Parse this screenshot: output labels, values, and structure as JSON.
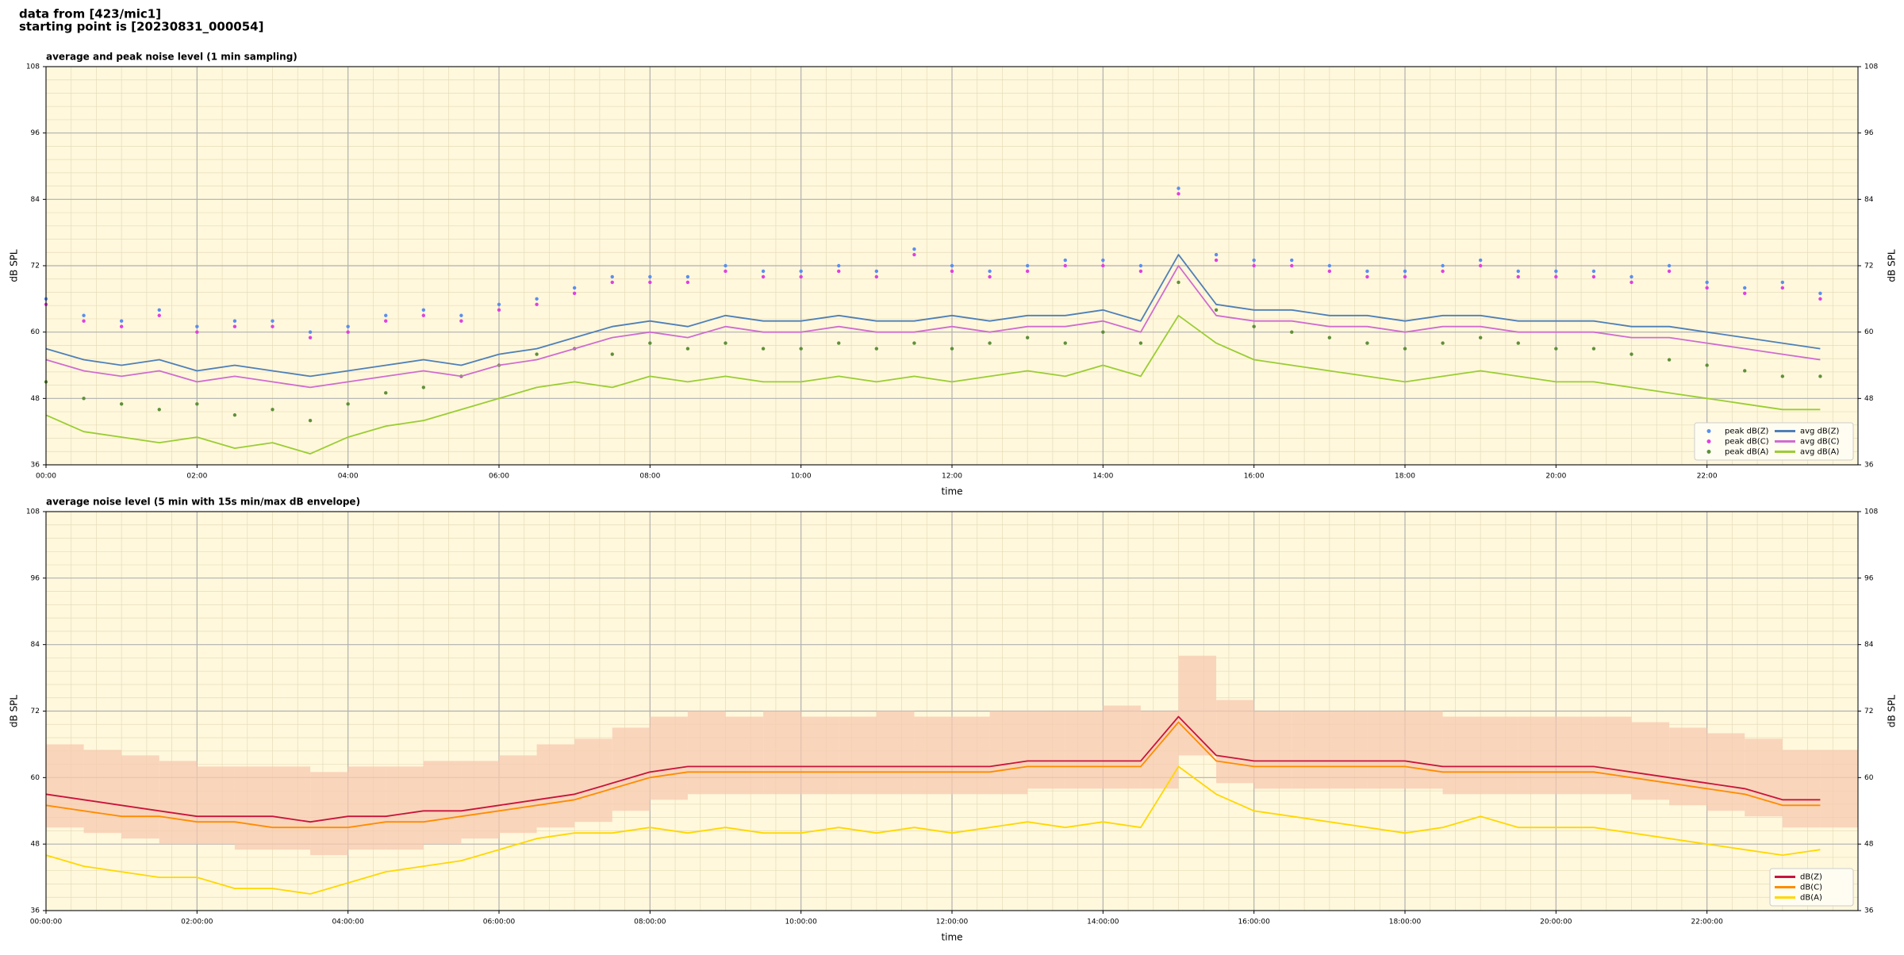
{
  "header": {
    "line1": "data from [423/mic1]",
    "line2": "starting point is [20230831_000054]"
  },
  "chart_data": [
    {
      "type": "line",
      "title": "average and peak noise level (1 min sampling)",
      "xlabel": "time",
      "ylabel": "dB SPL",
      "background": "#fff8dc",
      "grid": true,
      "minor_grid": true,
      "legend": {
        "loc": "lower right",
        "ncol": 2
      },
      "xlim": [
        0,
        24
      ],
      "ylim": [
        36,
        108
      ],
      "yticks": [
        36,
        48,
        60,
        72,
        84,
        96,
        108
      ],
      "xticks": [
        {
          "value": 0,
          "label": "00:00"
        },
        {
          "value": 2,
          "label": "02:00"
        },
        {
          "value": 4,
          "label": "04:00"
        },
        {
          "value": 6,
          "label": "06:00"
        },
        {
          "value": 8,
          "label": "08:00"
        },
        {
          "value": 10,
          "label": "10:00"
        },
        {
          "value": 12,
          "label": "12:00"
        },
        {
          "value": 14,
          "label": "14:00"
        },
        {
          "value": 16,
          "label": "16:00"
        },
        {
          "value": 18,
          "label": "18:00"
        },
        {
          "value": 20,
          "label": "20:00"
        },
        {
          "value": 22,
          "label": "22:00"
        }
      ],
      "x": [
        0,
        0.5,
        1,
        1.5,
        2,
        2.5,
        3,
        3.5,
        4,
        4.5,
        5,
        5.5,
        6,
        6.5,
        7,
        7.5,
        8,
        8.5,
        9,
        9.5,
        10,
        10.5,
        11,
        11.5,
        12,
        12.5,
        13,
        13.5,
        14,
        14.5,
        15,
        15.5,
        16,
        16.5,
        17,
        17.5,
        18,
        18.5,
        19,
        19.5,
        20,
        20.5,
        21,
        21.5,
        22,
        22.5,
        23,
        23.5
      ],
      "series": [
        {
          "name": "peak dB(Z)",
          "kind": "scatter",
          "color": "#5a8ef0",
          "values": [
            66,
            63,
            62,
            64,
            61,
            62,
            62,
            60,
            61,
            63,
            64,
            63,
            65,
            66,
            68,
            70,
            70,
            70,
            72,
            71,
            71,
            72,
            71,
            75,
            72,
            71,
            72,
            73,
            73,
            72,
            86,
            74,
            73,
            73,
            72,
            71,
            71,
            72,
            73,
            71,
            71,
            71,
            70,
            72,
            69,
            68,
            69,
            67
          ]
        },
        {
          "name": "peak dB(C)",
          "kind": "scatter",
          "color": "#e040e0",
          "values": [
            65,
            62,
            61,
            63,
            60,
            61,
            61,
            59,
            60,
            62,
            63,
            62,
            64,
            65,
            67,
            69,
            69,
            69,
            71,
            70,
            70,
            71,
            70,
            74,
            71,
            70,
            71,
            72,
            72,
            71,
            85,
            73,
            72,
            72,
            71,
            70,
            70,
            71,
            72,
            70,
            70,
            70,
            69,
            71,
            68,
            67,
            68,
            66
          ]
        },
        {
          "name": "peak dB(A)",
          "kind": "scatter",
          "color": "#5f8f3a",
          "values": [
            51,
            48,
            47,
            46,
            47,
            45,
            46,
            44,
            47,
            49,
            50,
            52,
            54,
            56,
            57,
            56,
            58,
            57,
            58,
            57,
            57,
            58,
            57,
            58,
            57,
            58,
            59,
            58,
            60,
            58,
            69,
            64,
            61,
            60,
            59,
            58,
            57,
            58,
            59,
            58,
            57,
            57,
            56,
            55,
            54,
            53,
            52,
            52
          ]
        },
        {
          "name": "avg dB(Z)",
          "kind": "line",
          "color": "#4f7fb8",
          "values": [
            57,
            55,
            54,
            55,
            53,
            54,
            53,
            52,
            53,
            54,
            55,
            54,
            56,
            57,
            59,
            61,
            62,
            61,
            63,
            62,
            62,
            63,
            62,
            62,
            63,
            62,
            63,
            63,
            64,
            62,
            74,
            65,
            64,
            64,
            63,
            63,
            62,
            63,
            63,
            62,
            62,
            62,
            61,
            61,
            60,
            59,
            58,
            57
          ]
        },
        {
          "name": "avg dB(C)",
          "kind": "line",
          "color": "#d06cd0",
          "values": [
            55,
            53,
            52,
            53,
            51,
            52,
            51,
            50,
            51,
            52,
            53,
            52,
            54,
            55,
            57,
            59,
            60,
            59,
            61,
            60,
            60,
            61,
            60,
            60,
            61,
            60,
            61,
            61,
            62,
            60,
            72,
            63,
            62,
            62,
            61,
            61,
            60,
            61,
            61,
            60,
            60,
            60,
            59,
            59,
            58,
            57,
            56,
            55
          ]
        },
        {
          "name": "avg dB(A)",
          "kind": "line",
          "color": "#9acd32",
          "values": [
            45,
            42,
            41,
            40,
            41,
            39,
            40,
            38,
            41,
            43,
            44,
            46,
            48,
            50,
            51,
            50,
            52,
            51,
            52,
            51,
            51,
            52,
            51,
            52,
            51,
            52,
            53,
            52,
            54,
            52,
            63,
            58,
            55,
            54,
            53,
            52,
            51,
            52,
            53,
            52,
            51,
            51,
            50,
            49,
            48,
            47,
            46,
            46
          ]
        }
      ]
    },
    {
      "type": "line",
      "title": "average noise level (5 min with 15s min/max dB envelope)",
      "xlabel": "time",
      "ylabel": "dB SPL",
      "background": "#fff8dc",
      "grid": true,
      "minor_grid": true,
      "legend": {
        "loc": "lower right",
        "ncol": 1
      },
      "xlim": [
        0,
        24
      ],
      "ylim": [
        36,
        108
      ],
      "yticks": [
        36,
        48,
        60,
        72,
        84,
        96,
        108
      ],
      "xticks": [
        {
          "value": 0,
          "label": "00:00:00"
        },
        {
          "value": 2,
          "label": "02:00:00"
        },
        {
          "value": 4,
          "label": "04:00:00"
        },
        {
          "value": 6,
          "label": "06:00:00"
        },
        {
          "value": 8,
          "label": "08:00:00"
        },
        {
          "value": 10,
          "label": "10:00:00"
        },
        {
          "value": 12,
          "label": "12:00:00"
        },
        {
          "value": 14,
          "label": "14:00:00"
        },
        {
          "value": 16,
          "label": "16:00:00"
        },
        {
          "value": 18,
          "label": "18:00:00"
        },
        {
          "value": 20,
          "label": "20:00:00"
        },
        {
          "value": 22,
          "label": "22:00:00"
        }
      ],
      "x": [
        0,
        0.5,
        1,
        1.5,
        2,
        2.5,
        3,
        3.5,
        4,
        4.5,
        5,
        5.5,
        6,
        6.5,
        7,
        7.5,
        8,
        8.5,
        9,
        9.5,
        10,
        10.5,
        11,
        11.5,
        12,
        12.5,
        13,
        13.5,
        14,
        14.5,
        15,
        15.5,
        16,
        16.5,
        17,
        17.5,
        18,
        18.5,
        19,
        19.5,
        20,
        20.5,
        21,
        21.5,
        22,
        22.5,
        23,
        23.5
      ],
      "envelope": {
        "color": "#f7c9b0",
        "max": [
          66,
          65,
          64,
          63,
          62,
          62,
          62,
          61,
          62,
          62,
          63,
          63,
          64,
          66,
          67,
          69,
          71,
          72,
          71,
          72,
          71,
          71,
          72,
          71,
          71,
          72,
          72,
          72,
          73,
          72,
          82,
          74,
          72,
          72,
          72,
          72,
          72,
          71,
          71,
          71,
          71,
          71,
          70,
          69,
          68,
          67,
          65,
          65
        ],
        "min": [
          51,
          50,
          49,
          48,
          48,
          47,
          47,
          46,
          47,
          47,
          48,
          49,
          50,
          51,
          52,
          54,
          56,
          57,
          57,
          57,
          57,
          57,
          57,
          57,
          57,
          57,
          58,
          58,
          58,
          58,
          64,
          59,
          58,
          58,
          58,
          58,
          58,
          57,
          57,
          57,
          57,
          57,
          56,
          55,
          54,
          53,
          51,
          51
        ]
      },
      "series": [
        {
          "name": "dB(Z)",
          "kind": "line",
          "color": "#c8143c",
          "values": [
            57,
            56,
            55,
            54,
            53,
            53,
            53,
            52,
            53,
            53,
            54,
            54,
            55,
            56,
            57,
            59,
            61,
            62,
            62,
            62,
            62,
            62,
            62,
            62,
            62,
            62,
            63,
            63,
            63,
            63,
            71,
            64,
            63,
            63,
            63,
            63,
            63,
            62,
            62,
            62,
            62,
            62,
            61,
            60,
            59,
            58,
            56,
            56
          ]
        },
        {
          "name": "dB(C)",
          "kind": "line",
          "color": "#ff8c00",
          "values": [
            55,
            54,
            53,
            53,
            52,
            52,
            51,
            51,
            51,
            52,
            52,
            53,
            54,
            55,
            56,
            58,
            60,
            61,
            61,
            61,
            61,
            61,
            61,
            61,
            61,
            61,
            62,
            62,
            62,
            62,
            70,
            63,
            62,
            62,
            62,
            62,
            62,
            61,
            61,
            61,
            61,
            61,
            60,
            59,
            58,
            57,
            55,
            55
          ]
        },
        {
          "name": "dB(A)",
          "kind": "line",
          "color": "#ffd700",
          "values": [
            46,
            44,
            43,
            42,
            42,
            40,
            40,
            39,
            41,
            43,
            44,
            45,
            47,
            49,
            50,
            50,
            51,
            50,
            51,
            50,
            50,
            51,
            50,
            51,
            50,
            51,
            52,
            51,
            52,
            51,
            62,
            57,
            54,
            53,
            52,
            51,
            50,
            51,
            53,
            51,
            51,
            51,
            50,
            49,
            48,
            47,
            46,
            47
          ]
        }
      ]
    }
  ]
}
